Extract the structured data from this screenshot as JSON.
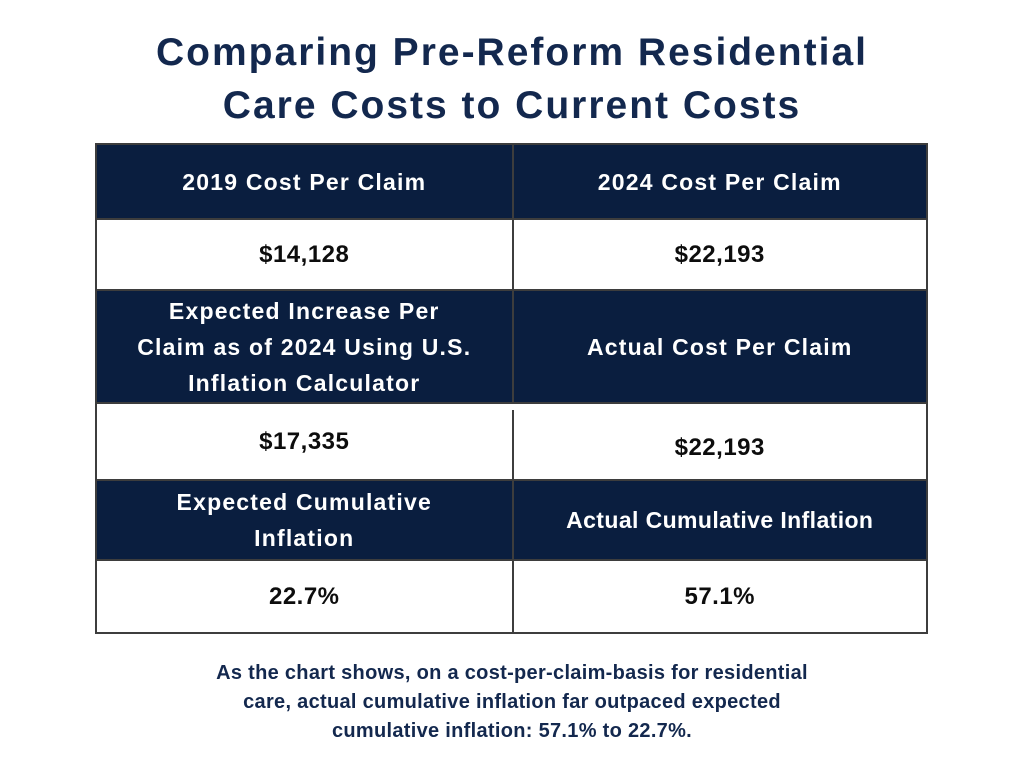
{
  "colors": {
    "navy": "#0a1e3f",
    "ink": "#13284e",
    "value": "#0d0d0d",
    "border": "#3d3d3d",
    "header-text": "#ffffff",
    "page-bg": "#ffffff"
  },
  "header": {
    "title_lines": [
      "Comparing Pre-Reform Residential",
      "Care Costs to Current Costs"
    ]
  },
  "chart_data": {
    "type": "table",
    "title": "Comparing Pre-Reform Residential Care Costs to Current Costs",
    "columns": 2,
    "rows": [
      {
        "kind": "header",
        "cells": [
          "2019 Cost Per Claim",
          "2024 Cost Per Claim"
        ]
      },
      {
        "kind": "value",
        "cells": [
          "$14,128",
          "$22,193"
        ]
      },
      {
        "kind": "header",
        "cells": [
          "Expected Increase Per\nClaim as of 2024 Using U.S.\nInflation Calculator",
          "Actual Cost Per Claim"
        ]
      },
      {
        "kind": "value",
        "cells": [
          "$17,335",
          "$22,193"
        ]
      },
      {
        "kind": "header",
        "cells": [
          "Expected Cumulative\nInflation",
          "Actual Cumulative Inflation"
        ]
      },
      {
        "kind": "value",
        "cells": [
          "22.7%",
          "57.1%"
        ]
      }
    ],
    "caption": "As the chart shows, on a cost-per-claim-basis for residential care, actual cumulative inflation far outpaced expected cumulative inflation: 57.1% to 22.7%."
  },
  "footer": {
    "caption_lines": [
      "As the chart shows, on a cost-per-claim-basis for residential",
      "care, actual cumulative inflation far outpaced expected",
      "cumulative inflation: 57.1% to 22.7%."
    ]
  }
}
